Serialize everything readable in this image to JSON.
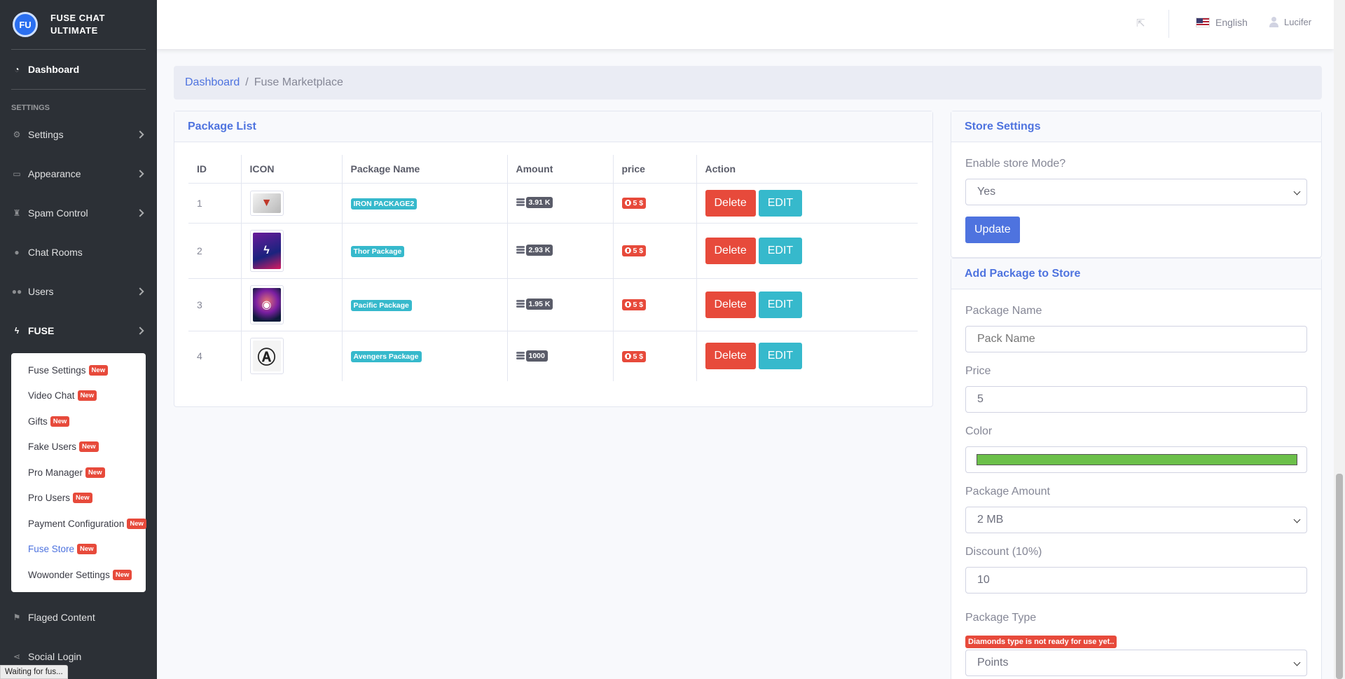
{
  "brand": {
    "logo_text": "FU",
    "name_line1": "FUSE CHAT",
    "name_line2": "ULTIMATE"
  },
  "sidebar": {
    "dashboard": "Dashboard",
    "settings_heading": "SETTINGS",
    "items": [
      {
        "label": "Settings",
        "icon": "gear-icon"
      },
      {
        "label": "Appearance",
        "icon": "appearance-icon"
      },
      {
        "label": "Spam Control",
        "icon": "spam-control-icon"
      },
      {
        "label": "Chat Rooms",
        "icon": "chat-icon"
      },
      {
        "label": "Users",
        "icon": "users-icon"
      },
      {
        "label": "FUSE",
        "icon": "bolt-icon"
      }
    ],
    "fuse_submenu": [
      {
        "label": "Fuse Settings",
        "badge": "New"
      },
      {
        "label": "Video Chat",
        "badge": "New"
      },
      {
        "label": "Gifts",
        "badge": "New"
      },
      {
        "label": "Fake Users",
        "badge": "New"
      },
      {
        "label": "Pro Manager",
        "badge": "New"
      },
      {
        "label": "Pro Users",
        "badge": "New"
      },
      {
        "label": "Payment Configuration",
        "badge": "New"
      },
      {
        "label": "Fuse Store",
        "badge": "New"
      },
      {
        "label": "Wowonder Settings",
        "badge": "New"
      }
    ],
    "bottom_items": [
      {
        "label": "Flaged Content",
        "icon": "flag-icon"
      },
      {
        "label": "Social Login",
        "icon": "share-icon"
      }
    ]
  },
  "status_bar": "Waiting for fus...",
  "topbar": {
    "language": "English",
    "user": "Lucifer"
  },
  "breadcrumb": {
    "home": "Dashboard",
    "separator": "/",
    "current": "Fuse Marketplace"
  },
  "package_list": {
    "title": "Package List",
    "columns": [
      "ID",
      "ICON",
      "Package Name",
      "Amount",
      "price",
      "Action"
    ],
    "delete_label": "Delete",
    "edit_label": "EDIT",
    "rows": [
      {
        "id": "1",
        "name": "IRON PACKAGE2",
        "amount": "3.91 K",
        "price": "5 $"
      },
      {
        "id": "2",
        "name": "Thor Package",
        "amount": "2.93 K",
        "price": "5 $"
      },
      {
        "id": "3",
        "name": "Pacific Package",
        "amount": "1.95 K",
        "price": "5 $"
      },
      {
        "id": "4",
        "name": "Avengers Package",
        "amount": "1000",
        "price": "5 $"
      }
    ]
  },
  "store_settings": {
    "title": "Store Settings",
    "enable_label": "Enable store Mode?",
    "enable_value": "Yes",
    "update_label": "Update"
  },
  "add_package": {
    "title": "Add Package to Store",
    "name_label": "Package Name",
    "name_placeholder": "Pack Name",
    "price_label": "Price",
    "price_value": "5",
    "color_label": "Color",
    "color_value": "#6cc04a",
    "amount_label": "Package Amount",
    "amount_value": "2 MB",
    "discount_label": "Discount (10%)",
    "discount_value": "10",
    "type_label": "Package Type",
    "type_warning": "Diamonds type is not ready for use yet..",
    "type_value": "Points"
  }
}
